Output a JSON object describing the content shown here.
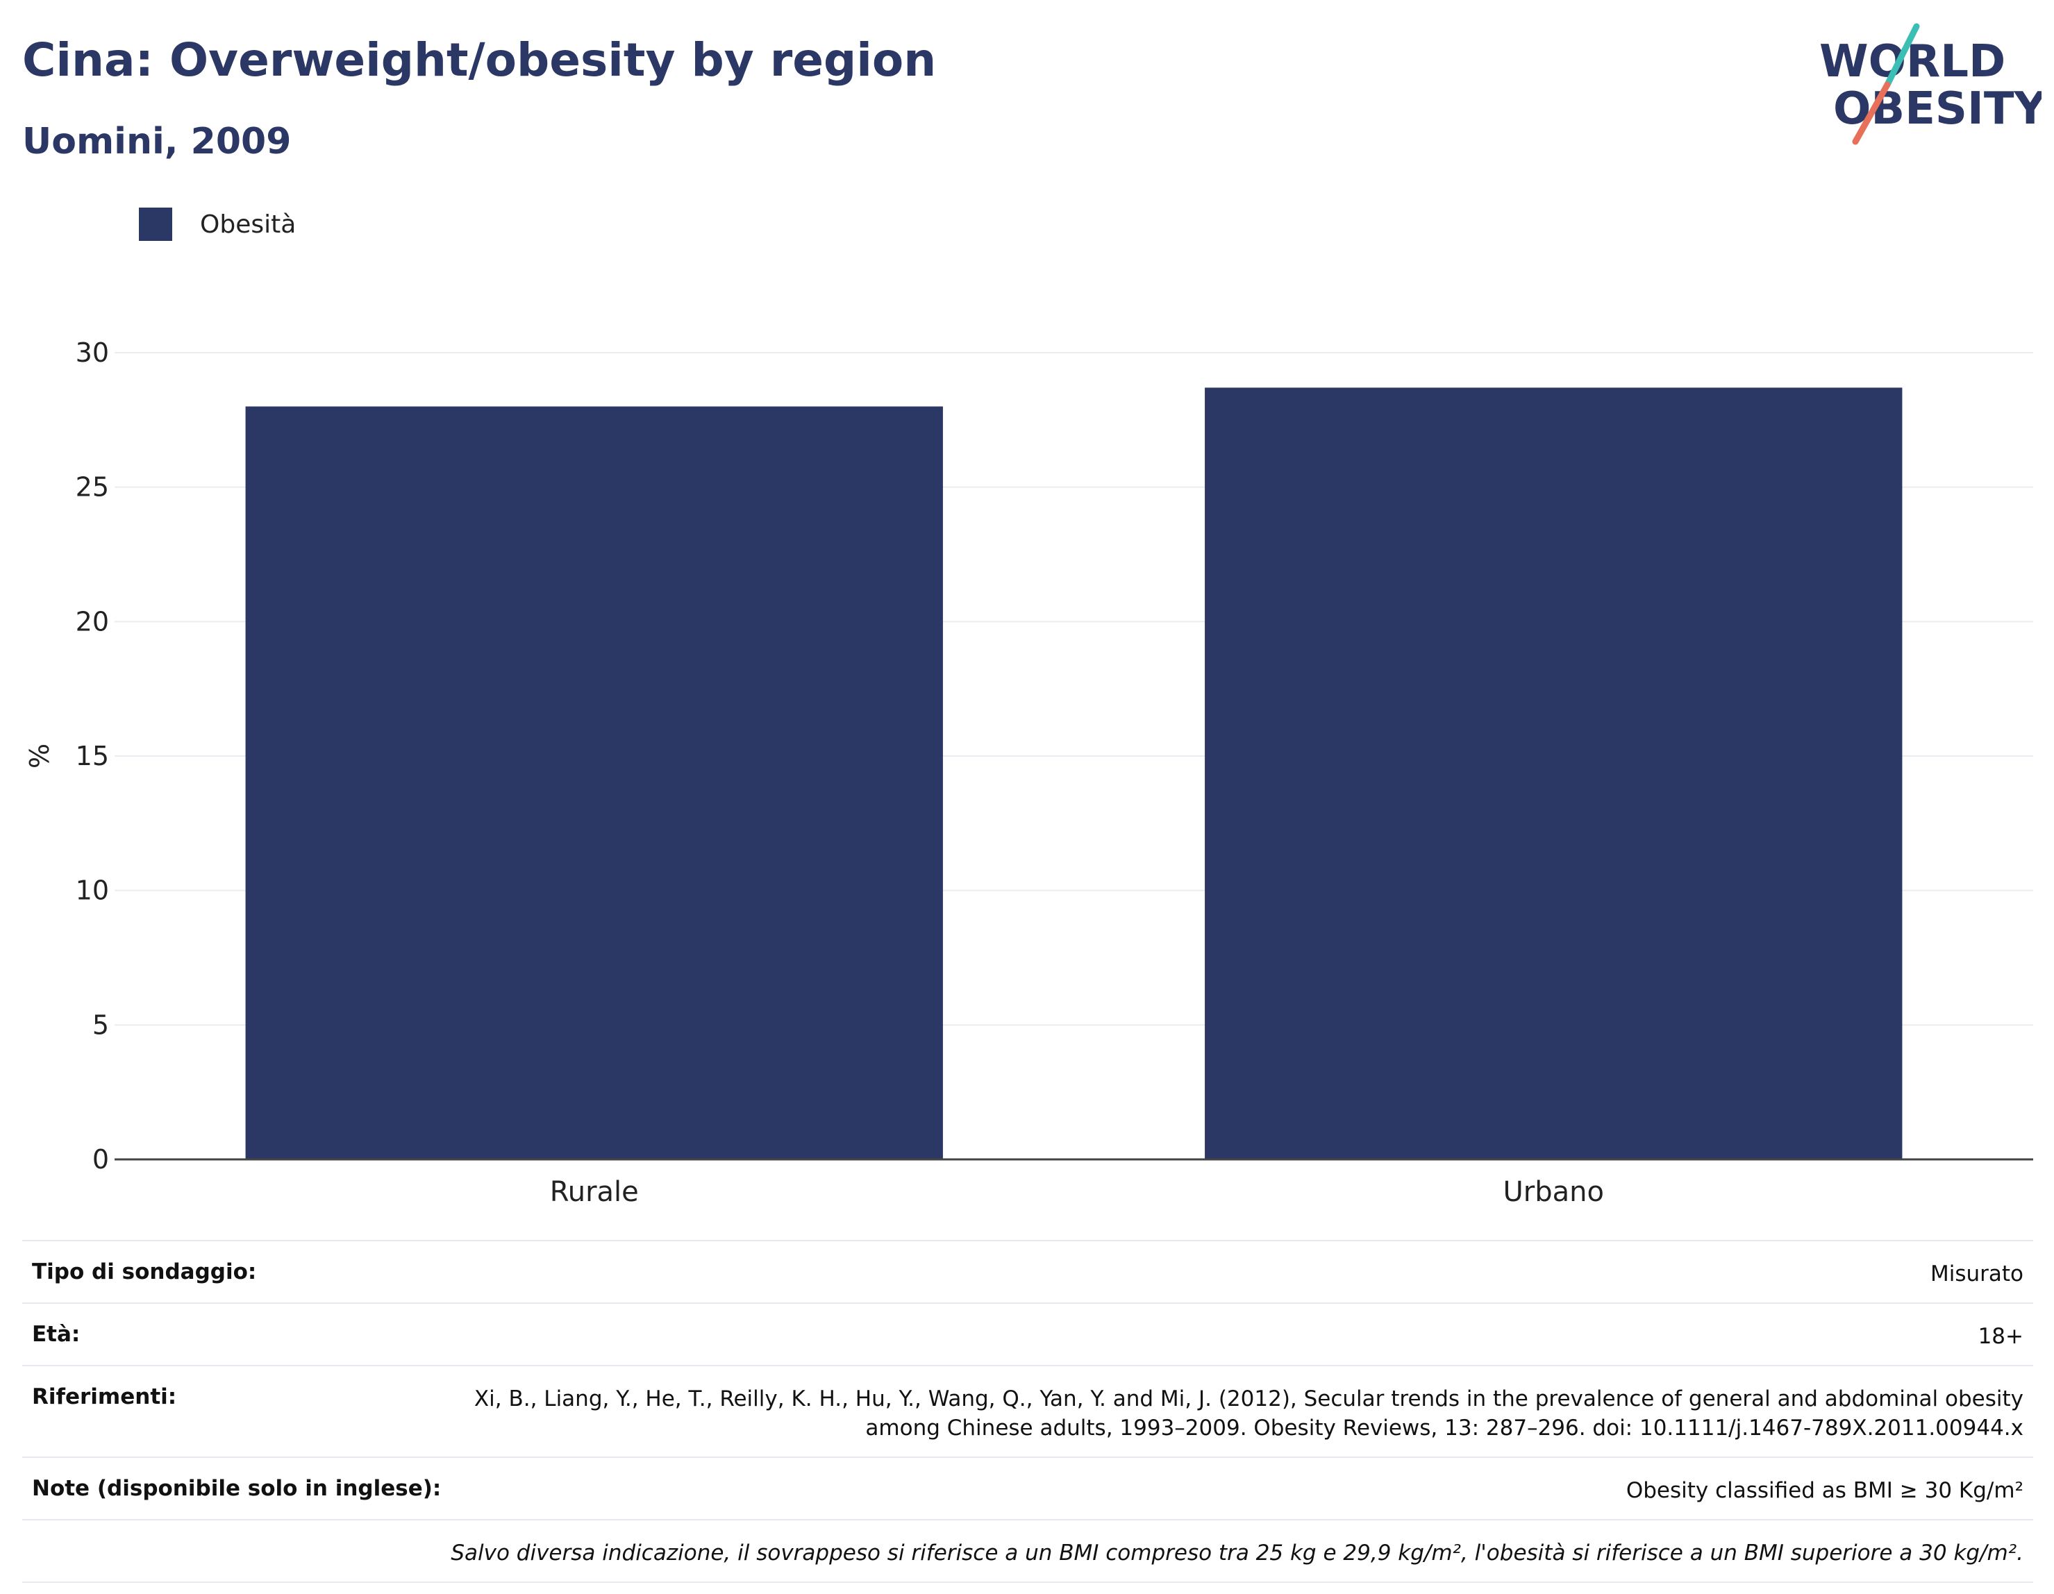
{
  "header": {
    "title": "Cina: Overweight/obesity by region",
    "subtitle": "Uomini, 2009"
  },
  "logo": {
    "line1": "WORLD",
    "line2": "OBESITY",
    "colors": {
      "text": "#2b3764",
      "slash_top": "#3bbfb4",
      "slash_bottom": "#e8705a"
    }
  },
  "legend": {
    "items": [
      {
        "label": "Obesità",
        "color": "#2b3764"
      }
    ]
  },
  "chart_data": {
    "type": "bar",
    "categories": [
      "Rurale",
      "Urbano"
    ],
    "series": [
      {
        "name": "Obesità",
        "values": [
          28.0,
          28.7
        ],
        "color": "#2b3764"
      }
    ],
    "ylabel": "%",
    "ylim": [
      0,
      30
    ],
    "yticks": [
      0,
      5,
      10,
      15,
      20,
      25,
      30
    ],
    "grid": true,
    "legend_position": "top-left"
  },
  "info": {
    "rows": [
      {
        "key": "Tipo di sondaggio:",
        "value": "Misurato"
      },
      {
        "key": "Età:",
        "value": "18+"
      },
      {
        "key": "Riferimenti:",
        "value": "Xi, B., Liang, Y., He, T., Reilly, K. H., Hu, Y., Wang, Q., Yan, Y. and Mi, J. (2012), Secular trends in the prevalence of general and abdominal obesity among Chinese adults, 1993–2009. Obesity Reviews, 13: 287–296. doi: 10.1111/j.1467-789X.2011.00944.x"
      },
      {
        "key": "Note (disponibile solo in inglese):",
        "value": "Obesity classified as BMI ≥ 30 Kg/m²"
      }
    ],
    "footnote": "Salvo diversa indicazione, il sovrappeso si riferisce a un BMI compreso tra 25 kg e 29,9 kg/m², l'obesità si riferisce a un BMI superiore a 30 kg/m²."
  }
}
